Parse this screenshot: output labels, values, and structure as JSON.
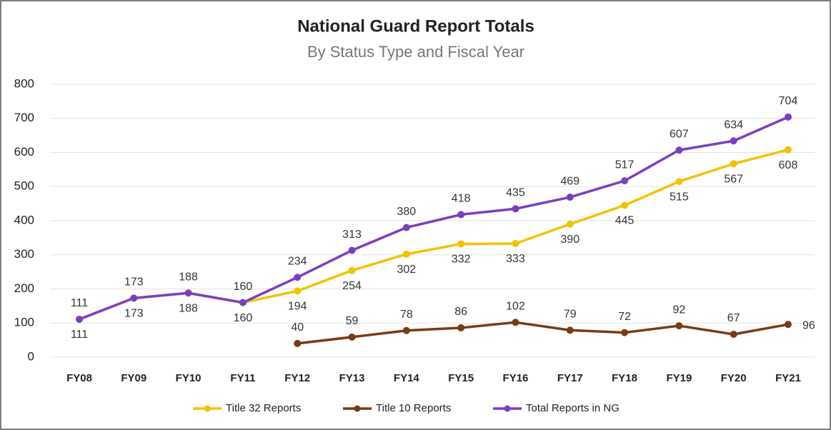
{
  "chart_data": {
    "type": "line",
    "title": "National Guard Report Totals",
    "subtitle": "By Status Type and Fiscal Year",
    "categories": [
      "FY08",
      "FY09",
      "FY10",
      "FY11",
      "FY12",
      "FY13",
      "FY14",
      "FY15",
      "FY16",
      "FY17",
      "FY18",
      "FY19",
      "FY20",
      "FY21"
    ],
    "series": [
      {
        "name": "Title 32 Reports",
        "color": "#f2c200",
        "values": [
          111,
          173,
          188,
          160,
          194,
          254,
          302,
          332,
          333,
          390,
          445,
          515,
          567,
          608
        ]
      },
      {
        "name": "Title 10 Reports",
        "color": "#7a3b12",
        "values": [
          null,
          null,
          null,
          null,
          40,
          59,
          78,
          86,
          102,
          79,
          72,
          92,
          67,
          96
        ]
      },
      {
        "name": "Total Reports in NG",
        "color": "#7b3fbe",
        "values": [
          111,
          173,
          188,
          160,
          234,
          313,
          380,
          418,
          435,
          469,
          517,
          607,
          634,
          704
        ]
      }
    ],
    "ylim": [
      0,
      800
    ],
    "yticks": [
      0,
      100,
      200,
      300,
      400,
      500,
      600,
      700,
      800
    ],
    "grid": true,
    "legend": "bottom"
  }
}
